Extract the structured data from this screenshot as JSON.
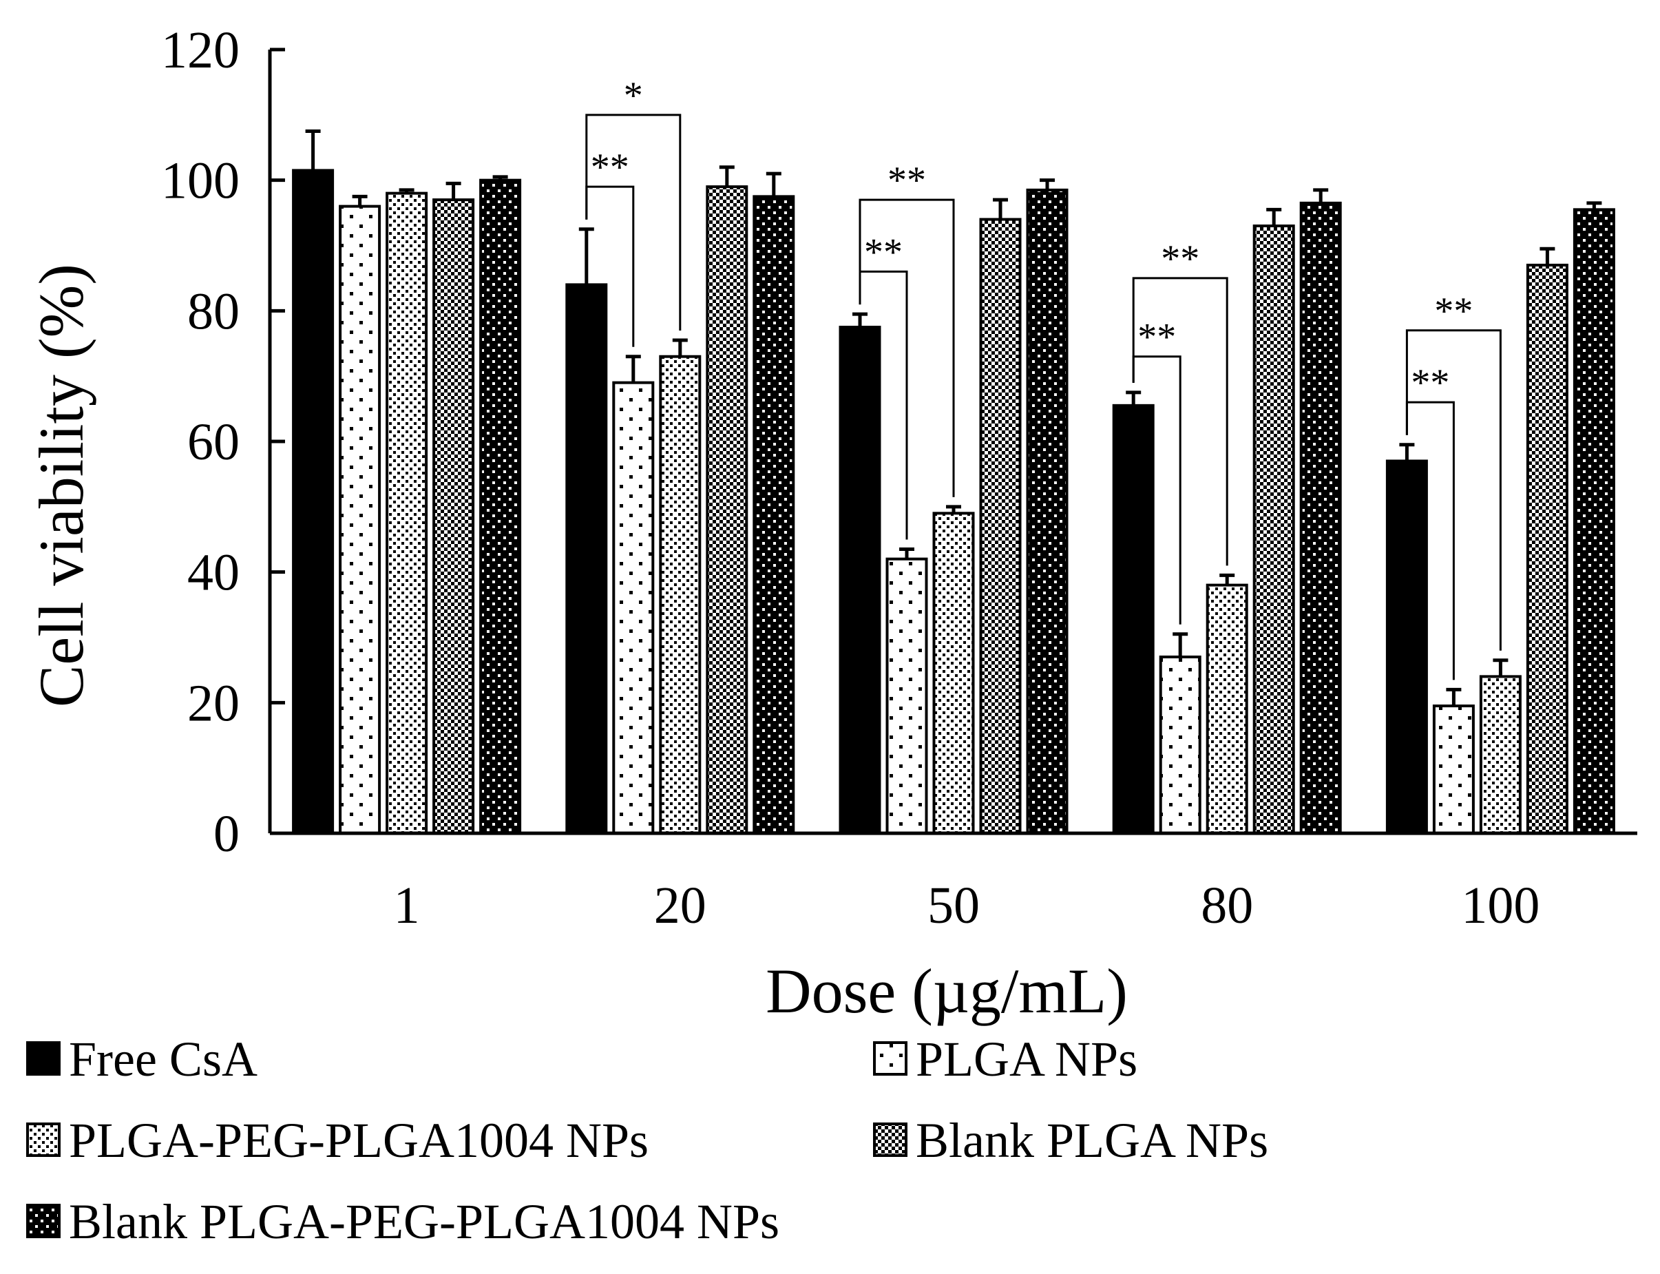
{
  "chart_data": {
    "type": "bar",
    "xlabel": "Dose (µg/mL)",
    "ylabel": "Cell viability (%)",
    "ylim": [
      0,
      120
    ],
    "yticks": [
      0,
      20,
      40,
      60,
      80,
      100,
      120
    ],
    "categories": [
      "1",
      "20",
      "50",
      "80",
      "100"
    ],
    "grid": false,
    "legend_position": "bottom",
    "series": [
      {
        "name": "Free CsA",
        "pattern": "solid",
        "values": [
          101.5,
          84,
          77.5,
          65.5,
          57
        ],
        "errors": [
          6,
          8.5,
          2,
          2,
          2.5
        ]
      },
      {
        "name": "PLGA NPs",
        "pattern": "sparse-dots",
        "values": [
          96,
          69,
          42,
          27,
          19.5
        ],
        "errors": [
          1.5,
          4,
          1.5,
          3.5,
          2.5
        ]
      },
      {
        "name": "PLGA-PEG-PLGA1004 NPs",
        "pattern": "dense-dots",
        "values": [
          98,
          73,
          49,
          38,
          24
        ],
        "errors": [
          0.5,
          2.5,
          1,
          1.5,
          2.5
        ]
      },
      {
        "name": "Blank PLGA NPs",
        "pattern": "checker",
        "values": [
          97,
          99,
          94,
          93,
          87
        ],
        "errors": [
          2.5,
          3,
          3,
          2.5,
          2.5
        ]
      },
      {
        "name": "Blank PLGA-PEG-PLGA1004 NPs",
        "pattern": "dark-dots",
        "values": [
          100,
          97.5,
          98.5,
          96.5,
          95.5
        ],
        "errors": [
          0.5,
          3.5,
          1.5,
          2,
          1
        ]
      }
    ],
    "annotations": [
      {
        "category": "20",
        "from_series": 0,
        "to_series": 2,
        "label": "*",
        "level": 110
      },
      {
        "category": "20",
        "from_series": 0,
        "to_series": 1,
        "label": "**",
        "level": 99
      },
      {
        "category": "50",
        "from_series": 0,
        "to_series": 2,
        "label": "**",
        "level": 97
      },
      {
        "category": "50",
        "from_series": 0,
        "to_series": 1,
        "label": "**",
        "level": 86
      },
      {
        "category": "80",
        "from_series": 0,
        "to_series": 2,
        "label": "**",
        "level": 85
      },
      {
        "category": "80",
        "from_series": 0,
        "to_series": 1,
        "label": "**",
        "level": 73
      },
      {
        "category": "100",
        "from_series": 0,
        "to_series": 2,
        "label": "**",
        "level": 77
      },
      {
        "category": "100",
        "from_series": 0,
        "to_series": 1,
        "label": "**",
        "level": 66
      }
    ]
  }
}
